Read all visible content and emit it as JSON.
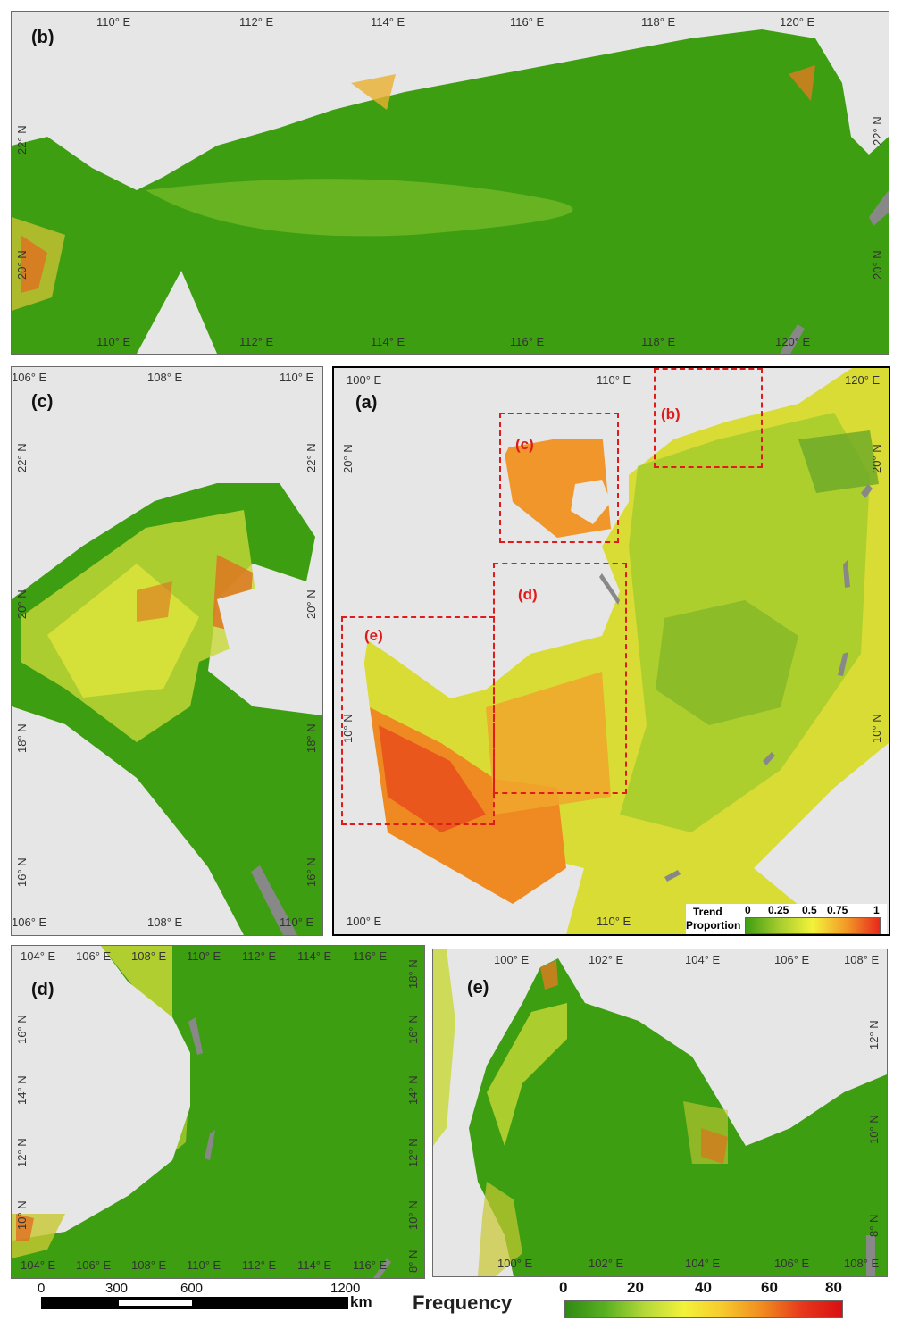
{
  "panels": {
    "b": {
      "label": "(b)",
      "top_ticks": [
        "110° E",
        "112° E",
        "114° E",
        "116° E",
        "118° E",
        "120° E"
      ],
      "bottom_ticks": [
        "110° E",
        "112° E",
        "114° E",
        "116° E",
        "118° E",
        "120° E"
      ],
      "left_ticks": [
        "22° N",
        "20° N"
      ],
      "right_ticks": [
        "22° N",
        "20° N"
      ]
    },
    "c": {
      "label": "(c)",
      "top_ticks": [
        "106° E",
        "108° E",
        "110° E"
      ],
      "bottom_ticks": [
        "106° E",
        "108° E",
        "110° E"
      ],
      "left_ticks": [
        "22° N",
        "20° N",
        "18° N",
        "16° N"
      ],
      "right_ticks": [
        "22° N",
        "20° N",
        "18° N",
        "16° N"
      ]
    },
    "a": {
      "label": "(a)",
      "top_ticks": [
        "100° E",
        "110° E",
        "120° E"
      ],
      "bottom_ticks": [
        "100° E",
        "110° E"
      ],
      "left_ticks": [
        "20° N",
        "10° N"
      ],
      "right_ticks": [
        "20° N",
        "10° N"
      ],
      "regions": [
        "(b)",
        "(c)",
        "(d)",
        "(e)"
      ],
      "legend": {
        "title_line1": "Trend",
        "title_line2": "Proportion",
        "ticks": [
          "0",
          "0.25",
          "0.5",
          "0.75",
          "1"
        ]
      }
    },
    "d": {
      "label": "(d)",
      "top_ticks": [
        "104° E",
        "106° E",
        "108° E",
        "110° E",
        "112° E",
        "114° E",
        "116° E"
      ],
      "bottom_ticks": [
        "104° E",
        "106° E",
        "108° E",
        "110° E",
        "112° E",
        "114° E",
        "116° E"
      ],
      "left_ticks": [
        "16° N",
        "14° N",
        "12° N",
        "10° N"
      ],
      "right_ticks": [
        "18° N",
        "16° N",
        "14° N",
        "12° N",
        "10° N",
        "8° N"
      ]
    },
    "e": {
      "label": "(e)",
      "top_ticks": [
        "100° E",
        "102° E",
        "104° E",
        "106° E",
        "108° E"
      ],
      "bottom_ticks": [
        "100° E",
        "102° E",
        "104° E",
        "106° E",
        "108° E"
      ],
      "right_ticks": [
        "12° N",
        "10° N",
        "8° N"
      ]
    }
  },
  "scale": {
    "ticks": [
      "0",
      "300",
      "600",
      "1200"
    ],
    "unit": "km"
  },
  "frequency": {
    "title": "Frequency",
    "ticks": [
      "0",
      "20",
      "40",
      "60",
      "80"
    ]
  },
  "colors": {
    "land": "#e6e6e6",
    "low": "#3a9a0e",
    "mid": "#f3f23a",
    "high": "#e6371c",
    "region_box": "#e01b1b"
  }
}
